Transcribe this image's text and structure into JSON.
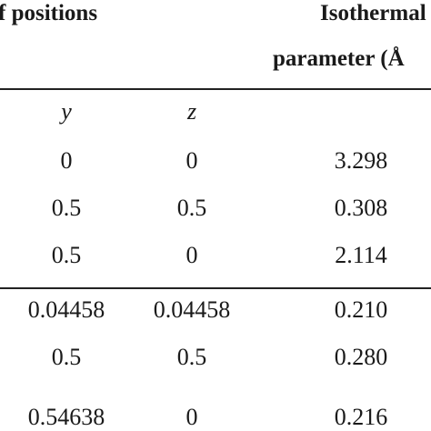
{
  "header": {
    "positions_label": "f positions",
    "isothermal_line1": "Isothermal",
    "isothermal_line2": "parameter (Å"
  },
  "columns": {
    "y": "y",
    "z": "z"
  },
  "rows": [
    {
      "y": "0",
      "z": "0",
      "param": "3.298"
    },
    {
      "y": "0.5",
      "z": "0.5",
      "param": "0.308"
    },
    {
      "y": "0.5",
      "z": "0",
      "param": "2.114"
    },
    {
      "y": "0.04458",
      "z": "0.04458",
      "param": "0.210"
    },
    {
      "y": "0.5",
      "z": "0.5",
      "param": "0.280"
    },
    {
      "y": "0.54638",
      "z": "0",
      "param": "0.216"
    }
  ]
}
